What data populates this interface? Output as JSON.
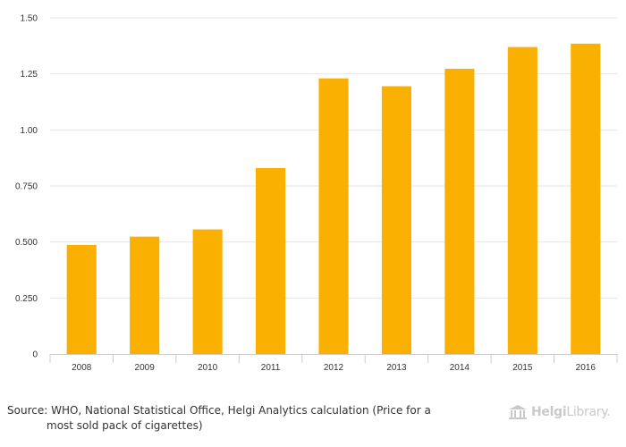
{
  "chart_data": {
    "type": "bar",
    "categories": [
      "2008",
      "2009",
      "2010",
      "2011",
      "2012",
      "2013",
      "2014",
      "2015",
      "2016"
    ],
    "values": [
      0.487,
      0.524,
      0.556,
      0.83,
      1.23,
      1.195,
      1.273,
      1.37,
      1.385
    ],
    "title": "",
    "xlabel": "",
    "ylabel": "",
    "ylim": [
      0,
      1.5
    ],
    "yticks": [
      0,
      0.25,
      0.5,
      0.75,
      1.0,
      1.25,
      1.5
    ],
    "ytick_labels": [
      "0",
      "0.250",
      "0.500",
      "0.750",
      "1.00",
      "1.25",
      "1.50"
    ],
    "grid": true,
    "bar_color": "#f9b000",
    "grid_color": "#e6e6e6",
    "axis_color": "#cccccc"
  },
  "footer": {
    "source_line1": "Source: WHO, National Statistical Office, Helgi Analytics calculation (Price for a",
    "source_line2": "most sold pack of cigarettes)"
  },
  "logo": {
    "brand_bold": "Helgi",
    "brand_rest": "Library.",
    "icon": "library-building-icon",
    "color": "#c9c9c9"
  }
}
